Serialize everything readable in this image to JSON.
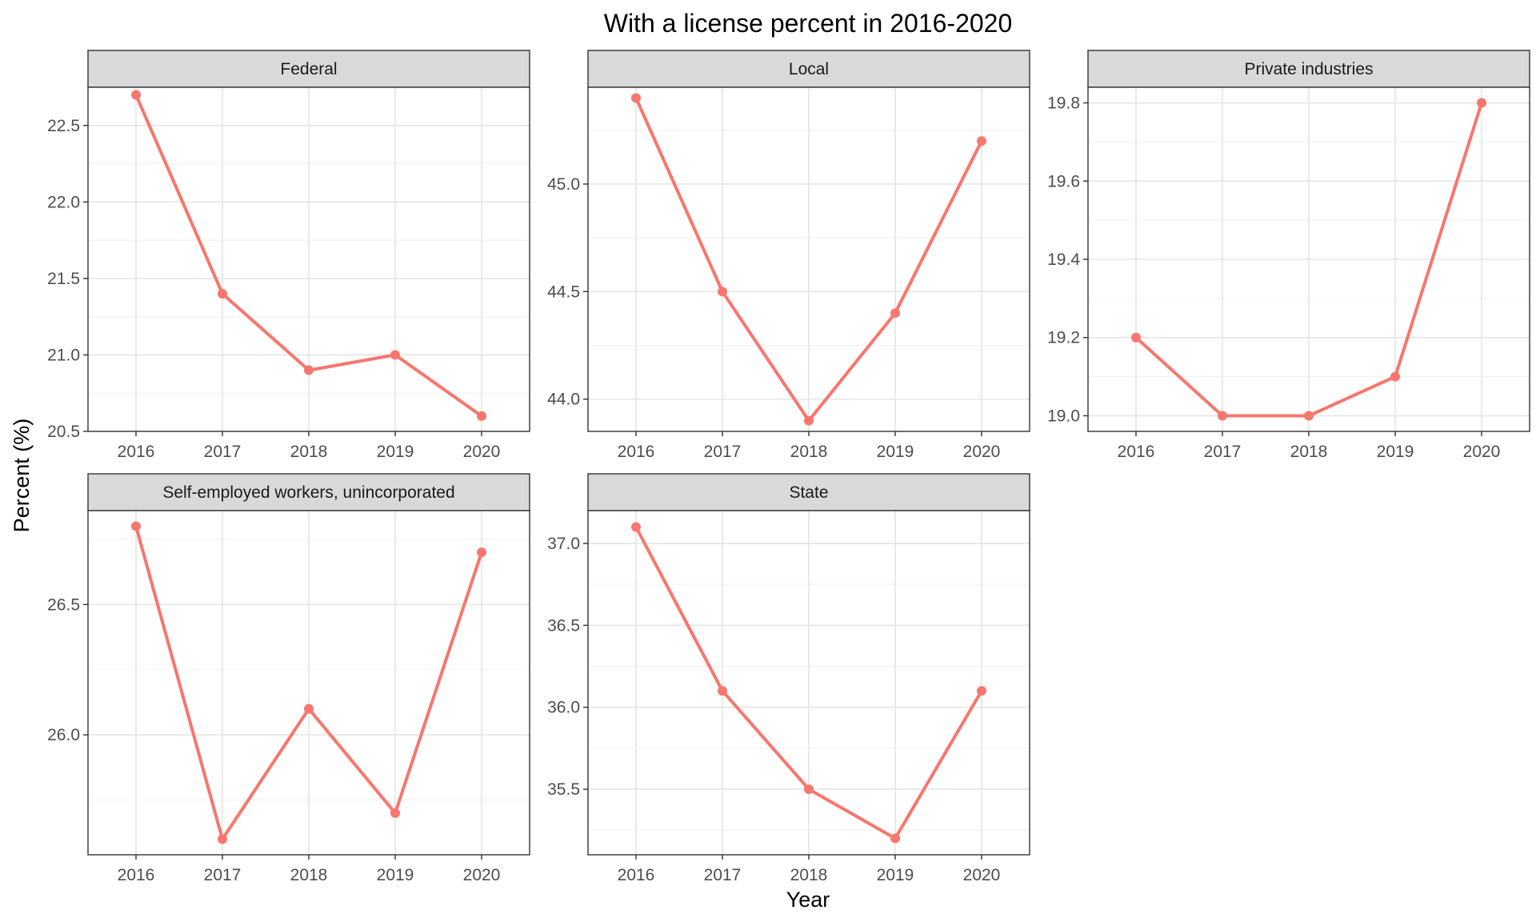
{
  "chart_data": {
    "type": "line",
    "title": "With a license percent in 2016-2020",
    "xlabel": "Year",
    "ylabel": "Percent (%)",
    "x": [
      2016,
      2017,
      2018,
      2019,
      2020
    ],
    "x_tick_labels": [
      "2016",
      "2017",
      "2018",
      "2019",
      "2020"
    ],
    "line_color": "#F8766D",
    "grid": true,
    "facets": [
      {
        "name": "Federal",
        "values": [
          22.7,
          21.4,
          20.9,
          21.0,
          20.6
        ],
        "ylim": [
          20.5,
          22.75
        ],
        "y_ticks": [
          20.5,
          21.0,
          21.5,
          22.0,
          22.5
        ],
        "y_tick_labels": [
          "20.5",
          "21.0",
          "21.5",
          "22.0",
          "22.5"
        ]
      },
      {
        "name": "Local",
        "values": [
          45.4,
          44.5,
          43.9,
          44.4,
          45.2
        ],
        "ylim": [
          43.85,
          45.45
        ],
        "y_ticks": [
          44.0,
          44.5,
          45.0
        ],
        "y_tick_labels": [
          "44.0",
          "44.5",
          "45.0"
        ]
      },
      {
        "name": "Private industries",
        "values": [
          19.2,
          19.0,
          19.0,
          19.1,
          19.8
        ],
        "ylim": [
          18.96,
          19.84
        ],
        "y_ticks": [
          19.0,
          19.2,
          19.4,
          19.6,
          19.8
        ],
        "y_tick_labels": [
          "19.0",
          "19.2",
          "19.4",
          "19.6",
          "19.8"
        ]
      },
      {
        "name": "Self-employed workers, unincorporated",
        "values": [
          26.8,
          25.6,
          26.1,
          25.7,
          26.7
        ],
        "ylim": [
          25.54,
          26.86
        ],
        "y_ticks": [
          26.0,
          26.5
        ],
        "y_tick_labels": [
          "26.0",
          "26.5"
        ]
      },
      {
        "name": "State",
        "values": [
          37.1,
          36.1,
          35.5,
          35.2,
          36.1
        ],
        "ylim": [
          35.1,
          37.2
        ],
        "y_ticks": [
          35.5,
          36.0,
          36.5,
          37.0
        ],
        "y_tick_labels": [
          "35.5",
          "36.0",
          "36.5",
          "37.0"
        ]
      }
    ]
  }
}
